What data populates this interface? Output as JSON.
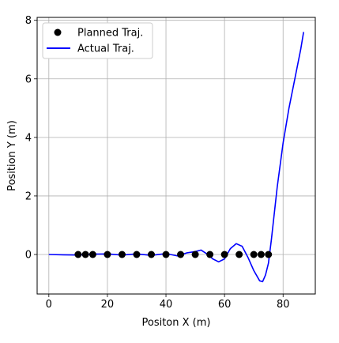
{
  "chart_data": {
    "type": "line",
    "xlabel": "Positon X (m)",
    "ylabel": "Position Y (m)",
    "xlim": [
      -4,
      91
    ],
    "ylim": [
      -1.35,
      8.1
    ],
    "xticks": [
      0,
      20,
      40,
      60,
      80
    ],
    "yticks": [
      0,
      2,
      4,
      6,
      8
    ],
    "grid": true,
    "legend": "top-left",
    "series": [
      {
        "name": "Planned Traj.",
        "kind": "scatter",
        "color": "#000000",
        "x": [
          10,
          12.5,
          15,
          20,
          25,
          30,
          35,
          40,
          45,
          50,
          55,
          60,
          65,
          70,
          72.5,
          75
        ],
        "y": [
          0,
          0,
          0,
          0,
          0,
          0,
          0,
          0,
          0,
          0,
          0,
          0,
          0,
          0,
          0,
          0
        ]
      },
      {
        "name": "Actual Traj.",
        "kind": "line",
        "color": "#0000ff",
        "x": [
          0,
          5,
          10,
          15,
          20,
          25,
          30,
          35,
          40,
          44,
          47,
          50,
          52,
          54,
          56,
          58,
          60,
          62,
          64,
          66,
          68,
          70,
          72,
          73,
          74,
          75,
          76,
          78,
          80,
          82,
          84,
          86,
          87
        ],
        "y": [
          0,
          -0.01,
          -0.02,
          0.01,
          0.02,
          -0.02,
          0.02,
          -0.03,
          0.03,
          -0.05,
          0.05,
          0.1,
          0.15,
          0.02,
          -0.15,
          -0.25,
          -0.15,
          0.2,
          0.37,
          0.28,
          -0.1,
          -0.55,
          -0.9,
          -0.93,
          -0.7,
          -0.3,
          0.5,
          2.3,
          3.8,
          5.0,
          6.0,
          7.0,
          7.6
        ]
      }
    ]
  }
}
